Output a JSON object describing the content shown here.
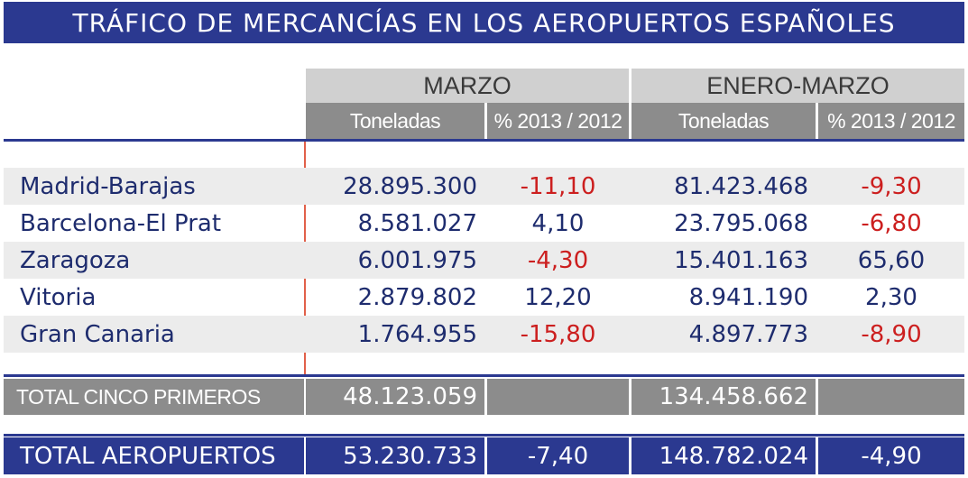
{
  "title": "TRÁFICO DE MERCANCÍAS EN LOS AEROPUERTOS ESPAÑOLES",
  "groups": [
    "MARZO",
    "ENERO-MARZO"
  ],
  "subheaders": [
    "Toneladas",
    "% 2013 / 2012",
    "Toneladas",
    "% 2013 / 2012"
  ],
  "rows": [
    {
      "name": "Madrid-Barajas",
      "mar_t": "28.895.300",
      "mar_p": "-11,10",
      "em_t": "81.423.468",
      "em_p": "-9,30"
    },
    {
      "name": "Barcelona-El Prat",
      "mar_t": "8.581.027",
      "mar_p": "4,10",
      "em_t": "23.795.068",
      "em_p": "-6,80"
    },
    {
      "name": "Zaragoza",
      "mar_t": "6.001.975",
      "mar_p": "-4,30",
      "em_t": "15.401.163",
      "em_p": "65,60"
    },
    {
      "name": "Vitoria",
      "mar_t": "2.879.802",
      "mar_p": "12,20",
      "em_t": "8.941.190",
      "em_p": "2,30"
    },
    {
      "name": "Gran Canaria",
      "mar_t": "1.764.955",
      "mar_p": "-15,80",
      "em_t": "4.897.773",
      "em_p": "-8,90"
    }
  ],
  "total_five": {
    "label": "TOTAL CINCO PRIMEROS",
    "mar_t": "48.123.059",
    "em_t": "134.458.662"
  },
  "total_airports": {
    "label": "TOTAL AEROPUERTOS",
    "mar_t": "53.230.733",
    "mar_p": "-7,40",
    "em_t": "148.782.024",
    "em_p": "-4,90"
  },
  "colors": {
    "title_bg": "#2b3990",
    "header_light": "#d0d0d0",
    "header_dark": "#8c8c8c",
    "text": "#1e2c6e",
    "negative": "#cc1f1f",
    "accent_line": "#e1604a"
  }
}
